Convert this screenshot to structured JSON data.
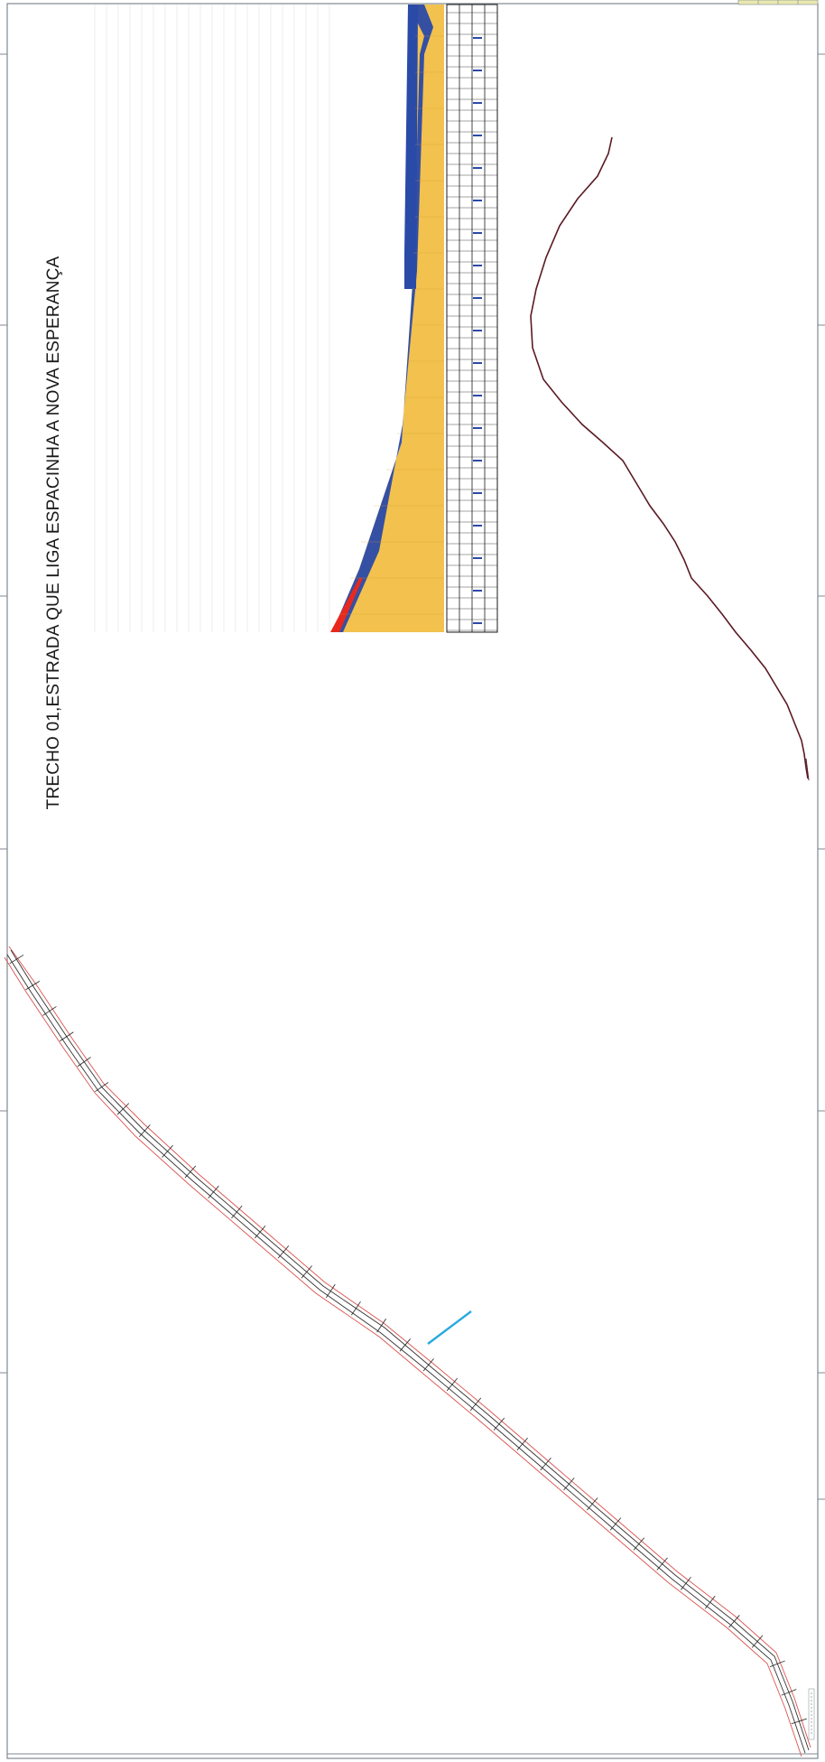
{
  "drawing": {
    "title": "TRECHO 01,ESTRADA QUE LIGA ESPACINHA A NOVA ESPERANÇA"
  },
  "colors": {
    "border": "#7f8890",
    "ink": "#1a1a1a",
    "road_edge": "#d9534f",
    "road_center": "#333333",
    "terrain_line": "#5a1a24",
    "fill_cut": "#f2c14e",
    "fill_blue": "#2a4aa8",
    "fill_red": "#e8281e",
    "marker": "#29a9e0",
    "grid": "#cfcfcf"
  }
}
